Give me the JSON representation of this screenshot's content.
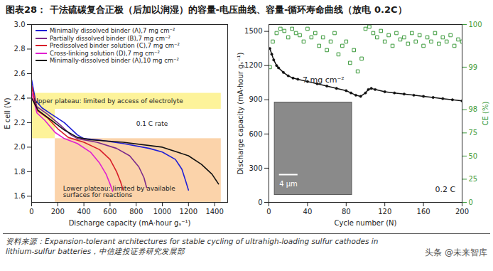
{
  "title": "图表28：  干法硫碳复合正极（后加以润湿）的容量-电压曲线、容量-循环寿命曲线（放电 0.2C）",
  "source": "资料来源：Expansion-tolerant architectures for stable cycling of ultrahigh-loading sulfur cathodes in lithium-sulfur batteries，中信建投证券研究发展部",
  "watermark": "头条 @未来智库",
  "chart_data": [
    {
      "type": "line",
      "xlabel": "Discharge capacity (mA·hour gₛ⁻¹)",
      "ylabel": "E cell (V)",
      "xlim": [
        0,
        1500
      ],
      "xticks": [
        0,
        200,
        400,
        600,
        800,
        1000,
        1200,
        1400
      ],
      "ylim": [
        1.55,
        3.0
      ],
      "yticks": [
        1.6,
        1.8,
        {
          "value": 2,
          "label": "2.0"
        },
        2.2,
        2.4,
        2.6,
        2.8,
        {
          "value": 3,
          "label": "3.0"
        }
      ],
      "grid": false,
      "legend": "top-left",
      "regions": [
        {
          "x": [
            0,
            1450
          ],
          "y": [
            2.31,
            2.44
          ],
          "color": "#fdf39a"
        },
        {
          "x": [
            0,
            180
          ],
          "y": [
            2.07,
            2.31
          ],
          "color": "#fdf39a"
        },
        {
          "x": [
            180,
            1450
          ],
          "y": [
            1.55,
            2.07
          ],
          "color": "#fbd3aa"
        }
      ],
      "annotations": [
        {
          "text": "Upper plateau: limited by access of electrolyte",
          "x": 15,
          "y": 2.375
        },
        {
          "text": "0.1 C rate",
          "x": 800,
          "y": 2.19
        },
        {
          "text": "Lower plateau: limited by available\nsurfaces for reactions",
          "x": 240,
          "y": 1.635
        }
      ],
      "series": [
        {
          "name": "Minimally dissolved binder (A),7 mg cm⁻²",
          "color": "#1f1fd6",
          "x": [
            0,
            30,
            80,
            150,
            250,
            350,
            400,
            500,
            700,
            900,
            1000,
            1100,
            1150,
            1180,
            1200
          ],
          "values": [
            2.55,
            2.38,
            2.32,
            2.27,
            2.2,
            2.1,
            2.07,
            2.06,
            2.03,
            1.99,
            1.96,
            1.9,
            1.82,
            1.72,
            1.65
          ]
        },
        {
          "name": "Partially dissolved binder (B),7 mg cm⁻²",
          "color": "#7b2a8a",
          "x": [
            0,
            40,
            120,
            220,
            300,
            350,
            500,
            650,
            750,
            820,
            860,
            880
          ],
          "values": [
            2.5,
            2.33,
            2.27,
            2.18,
            2.1,
            2.07,
            2.04,
            1.99,
            1.93,
            1.84,
            1.75,
            1.67
          ]
        },
        {
          "name": "Predissolved binder solution (C),7 mg cm⁻²",
          "color": "#d81e2a",
          "x": [
            0,
            40,
            120,
            200,
            280,
            400,
            520,
            600,
            650,
            680,
            700
          ],
          "values": [
            2.5,
            2.3,
            2.24,
            2.15,
            2.08,
            2.04,
            1.98,
            1.9,
            1.8,
            1.72,
            1.65
          ]
        },
        {
          "name": "Cross-linking solution (D),7 mg cm⁻²",
          "color": "#e020d0",
          "x": [
            0,
            40,
            100,
            180,
            250,
            350,
            450,
            520,
            570,
            600,
            620
          ],
          "values": [
            2.45,
            2.28,
            2.22,
            2.12,
            2.07,
            2.03,
            1.96,
            1.87,
            1.78,
            1.7,
            1.64
          ]
        },
        {
          "name": "Minimally-dissolved binder (A),10 mg cm⁻²",
          "color": "#111111",
          "x": [
            0,
            50,
            150,
            250,
            350,
            450,
            700,
            1000,
            1200,
            1300,
            1380,
            1430
          ],
          "values": [
            2.4,
            2.3,
            2.22,
            2.14,
            2.08,
            2.06,
            2.04,
            2.0,
            1.93,
            1.86,
            1.78,
            1.7
          ]
        }
      ]
    },
    {
      "type": "line",
      "xlabel": "Cycle number (N)",
      "ylabel": "Discharge capacity (mA·hour gₛ⁻¹)",
      "y2label": "CE (%)",
      "xlim": [
        0,
        200
      ],
      "xticks": [
        0,
        40,
        80,
        120,
        160,
        200
      ],
      "ylim": [
        0,
        1560
      ],
      "yticks": [
        0,
        300,
        600,
        900,
        1200,
        1500
      ],
      "y2lim": [
        0,
        100
      ],
      "y2ticks": [
        0,
        25,
        50,
        75,
        98,
        99,
        100
      ],
      "grid": false,
      "annotations": [
        {
          "text": "7 mg cm⁻²",
          "x": 35,
          "y": 1075
        },
        {
          "text": "0.2 C",
          "x": 172,
          "y": 110
        }
      ],
      "inset": {
        "label": "4 μm",
        "x": [
          6,
          86
        ],
        "y": [
          65,
          876
        ]
      },
      "series": [
        {
          "type": "line",
          "color": "#111111",
          "marker": "circle",
          "x": [
            1,
            3,
            5,
            8,
            10,
            15,
            20,
            25,
            30,
            40,
            50,
            60,
            70,
            80,
            85,
            90,
            95,
            100,
            103,
            106,
            110,
            120,
            130,
            140,
            150,
            160,
            170,
            180,
            190,
            200
          ],
          "values": [
            1350,
            1300,
            1250,
            1200,
            1180,
            1140,
            1110,
            1090,
            1080,
            1060,
            1040,
            1020,
            1000,
            980,
            960,
            940,
            930,
            960,
            990,
            1000,
            990,
            970,
            960,
            950,
            940,
            930,
            920,
            910,
            900,
            890
          ]
        },
        {
          "type": "scatter",
          "axis": "y2",
          "color": "#3c9a3c",
          "marker": "square",
          "x": [
            1,
            4,
            8,
            12,
            16,
            20,
            24,
            28,
            32,
            36,
            40,
            44,
            48,
            52,
            56,
            60,
            64,
            68,
            72,
            76,
            80,
            84,
            88,
            92,
            96,
            100,
            104,
            108,
            112,
            116,
            120,
            124,
            128,
            132,
            136,
            140,
            144,
            148,
            152,
            156,
            160,
            164,
            168,
            172,
            176,
            180,
            184,
            188,
            192,
            196,
            200
          ],
          "values": [
            99.0,
            99.6,
            99.8,
            99.9,
            99.85,
            99.7,
            99.9,
            99.8,
            99.75,
            99.6,
            99.9,
            99.7,
            99.8,
            99.5,
            99.7,
            99.4,
            99.6,
            99.8,
            99.3,
            99.5,
            99.6,
            99.1,
            99.4,
            98.9,
            99.2,
            99.9,
            99.95,
            99.8,
            99.7,
            99.85,
            99.6,
            99.75,
            99.5,
            99.8,
            99.65,
            99.7,
            99.55,
            99.8,
            99.6,
            99.75,
            99.5,
            99.7,
            99.6,
            99.8,
            99.55,
            99.7,
            99.6,
            99.75,
            99.5,
            99.65,
            99.6
          ]
        }
      ]
    }
  ]
}
